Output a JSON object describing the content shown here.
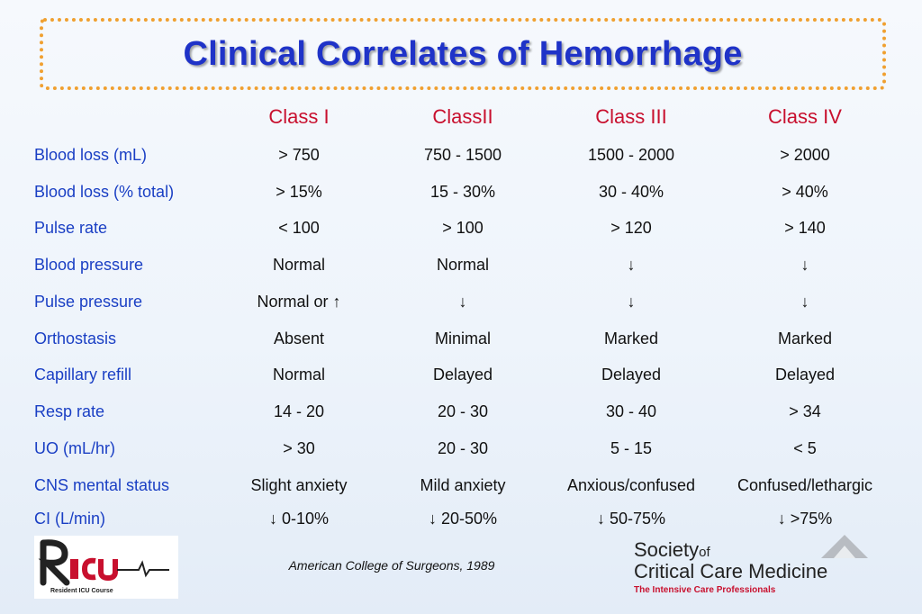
{
  "title": "Clinical Correlates of Hemorrhage",
  "columns": [
    "Class I",
    "ClassII",
    "Class III",
    "Class IV"
  ],
  "rows": [
    {
      "label": "Blood loss (mL)",
      "values": [
        "> 750",
        "750 - 1500",
        "1500 - 2000",
        "> 2000"
      ]
    },
    {
      "label": "Blood loss (% total)",
      "values": [
        "> 15%",
        "15 - 30%",
        "30 - 40%",
        "> 40%"
      ]
    },
    {
      "label": "Pulse rate",
      "values": [
        "< 100",
        "> 100",
        "> 120",
        "> 140"
      ]
    },
    {
      "label": "Blood pressure",
      "values": [
        "Normal",
        "Normal",
        "↓",
        "↓"
      ]
    },
    {
      "label": "Pulse pressure",
      "values": [
        "Normal or ↑",
        "↓",
        "↓",
        "↓"
      ]
    },
    {
      "label": "Orthostasis",
      "values": [
        "Absent",
        "Minimal",
        "Marked",
        "Marked"
      ]
    },
    {
      "label": "Capillary refill",
      "values": [
        "Normal",
        "Delayed",
        "Delayed",
        "Delayed"
      ]
    },
    {
      "label": "Resp rate",
      "values": [
        "14 - 20",
        "20 - 30",
        "30 - 40",
        "> 34"
      ]
    },
    {
      "label": "UO (mL/hr)",
      "values": [
        "> 30",
        "20 - 30",
        "5 - 15",
        "< 5"
      ]
    },
    {
      "label": "CNS mental status",
      "values": [
        "Slight anxiety",
        "Mild anxiety",
        "Anxious/confused",
        "Confused/lethargic"
      ]
    },
    {
      "label": "CI (L/min)",
      "values": [
        "↓ 0-10%",
        "↓ 20-50%",
        "↓ 50-75%",
        "↓ >75%"
      ]
    }
  ],
  "footer": {
    "citation": "American College of Surgeons, 1989",
    "logo_left": {
      "letters": "RICU",
      "caption": "Resident ICU Course"
    },
    "logo_right": {
      "line1": "Society",
      "line1_of": "of",
      "line2": "Critical Care Medicine",
      "tagline": "The Intensive Care Professionals"
    }
  },
  "colors": {
    "title": "#1f33c8",
    "header": "#c8102e",
    "label": "#1a3fc4",
    "border": "#f0a030"
  }
}
